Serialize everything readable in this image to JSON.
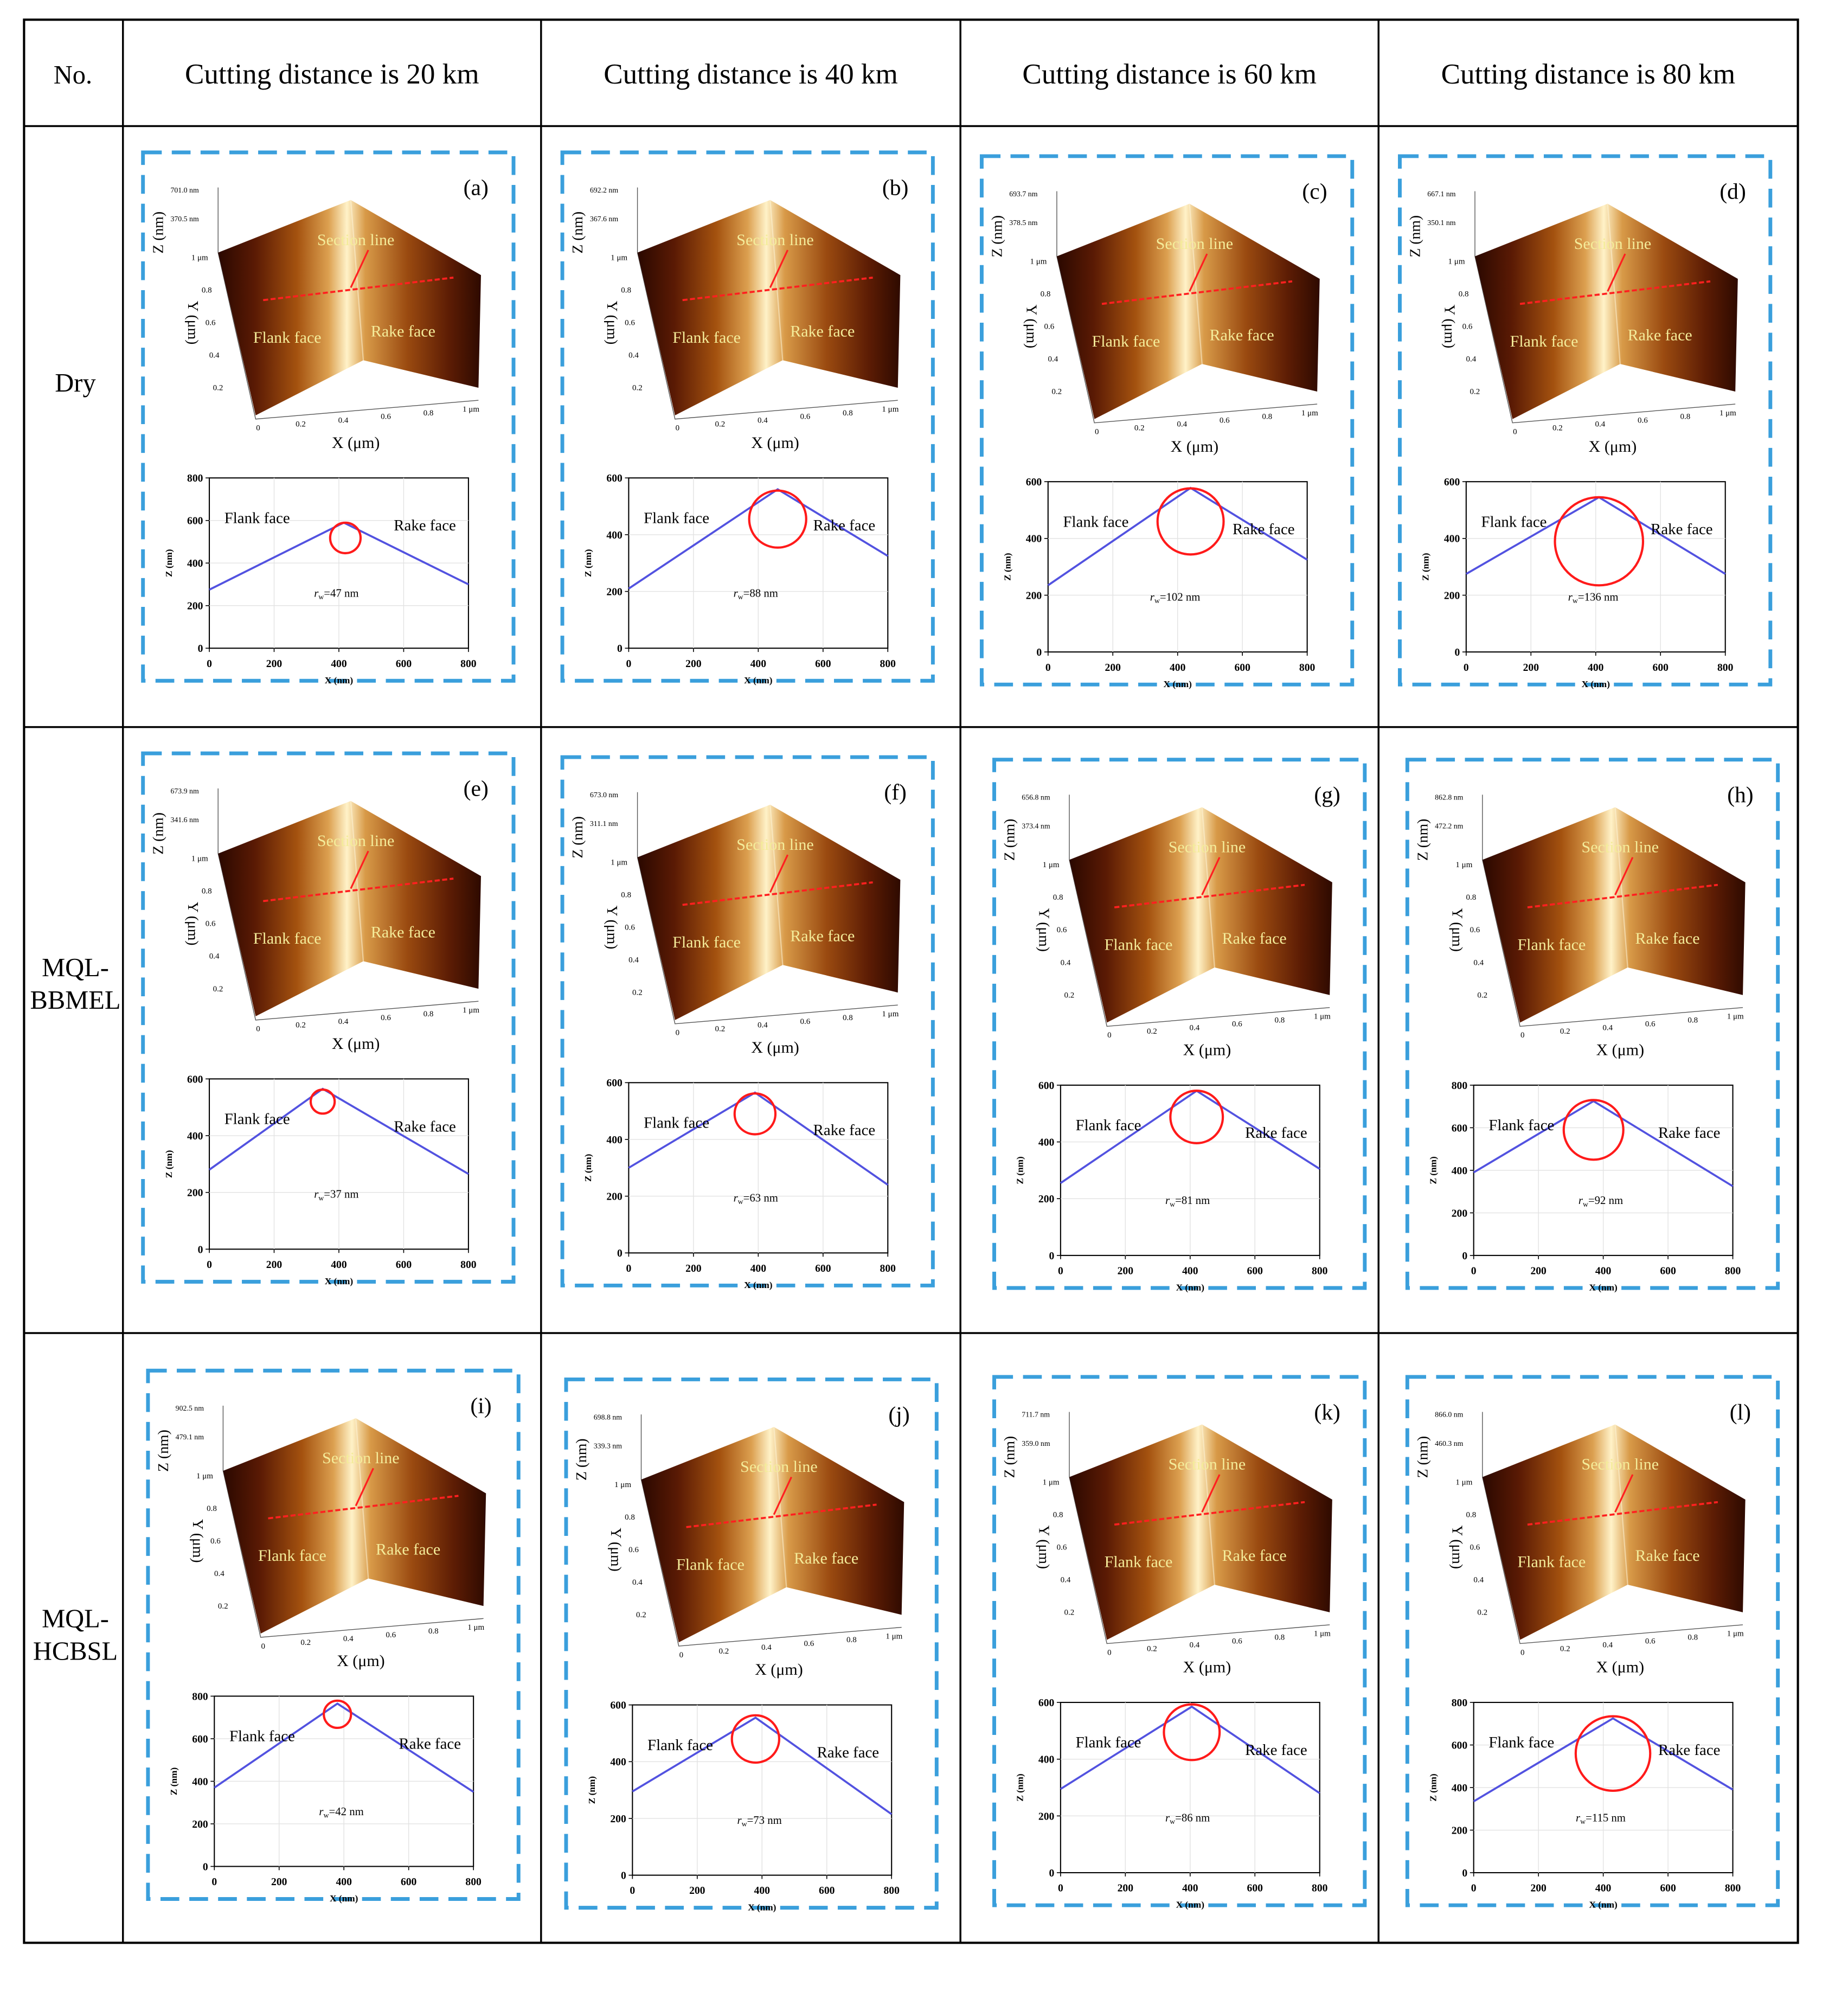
{
  "table": {
    "header_no": "No.",
    "columns": [
      "Cutting distance is 20 km",
      "Cutting distance is 40 km",
      "Cutting distance is 60 km",
      "Cutting distance is 80 km"
    ],
    "rows": [
      {
        "label_lines": [
          "Dry"
        ]
      },
      {
        "label_lines": [
          "MQL-",
          "BBMEL"
        ]
      },
      {
        "label_lines": [
          "MQL-",
          "HCBSL"
        ]
      }
    ]
  },
  "panel_text": {
    "section_line": "Section line",
    "flank_face": "Flank face",
    "rake_face": "Rake face",
    "x_axis_3d": "X (μm)",
    "y_axis_3d": "Y (μm)",
    "z_axis_3d": "Z (nm)",
    "x_axis_2d": "X (nm)",
    "z_axis_2d": "Z (nm)",
    "y_ticks_3d": [
      "1 μm",
      "0.8",
      "0.6",
      "0.4",
      "0.2"
    ],
    "x_ticks_3d": [
      "0",
      "0.2",
      "0.4",
      "0.6",
      "0.8",
      "1 μm"
    ],
    "x_ticks_2d": [
      "0",
      "200",
      "400",
      "600",
      "800"
    ]
  },
  "colors": {
    "dashed_border": "#3a9fdc",
    "profile_line": "#5252e0",
    "edge_circle": "#ff1a1a",
    "section_line": "#ff2020",
    "label_on_surface": "#f4ec9a"
  },
  "panels": [
    {
      "id": "(a)",
      "z_max": "701.0 nm",
      "z_mid": "370.5 nm",
      "rw": "47",
      "ylim": [
        0,
        800
      ],
      "profile": [
        [
          0,
          275
        ],
        [
          415,
          590
        ],
        [
          800,
          300
        ]
      ],
      "circle": {
        "cx": 420,
        "cy": 518,
        "r": 47
      }
    },
    {
      "id": "(b)",
      "z_max": "692.2 nm",
      "z_mid": "367.6 nm",
      "rw": "88",
      "ylim": [
        0,
        600
      ],
      "profile": [
        [
          0,
          210
        ],
        [
          460,
          560
        ],
        [
          800,
          325
        ]
      ],
      "circle": {
        "cx": 460,
        "cy": 455,
        "r": 88
      }
    },
    {
      "id": "(c)",
      "z_max": "693.7 nm",
      "z_mid": "378.5 nm",
      "rw": "102",
      "ylim": [
        0,
        600
      ],
      "profile": [
        [
          0,
          235
        ],
        [
          440,
          578
        ],
        [
          800,
          325
        ]
      ],
      "circle": {
        "cx": 440,
        "cy": 460,
        "r": 102
      }
    },
    {
      "id": "(d)",
      "z_max": "667.1 nm",
      "z_mid": "350.1 nm",
      "rw": "136",
      "ylim": [
        0,
        600
      ],
      "profile": [
        [
          0,
          275
        ],
        [
          410,
          545
        ],
        [
          800,
          275
        ]
      ],
      "circle": {
        "cx": 410,
        "cy": 390,
        "r": 136
      }
    },
    {
      "id": "(e)",
      "z_max": "673.9 nm",
      "z_mid": "341.6 nm",
      "rw": "37",
      "ylim": [
        0,
        600
      ],
      "profile": [
        [
          0,
          280
        ],
        [
          350,
          565
        ],
        [
          800,
          265
        ]
      ],
      "circle": {
        "cx": 350,
        "cy": 520,
        "r": 37
      }
    },
    {
      "id": "(f)",
      "z_max": "673.0 nm",
      "z_mid": "311.1 nm",
      "rw": "63",
      "ylim": [
        0,
        600
      ],
      "profile": [
        [
          0,
          300
        ],
        [
          390,
          565
        ],
        [
          800,
          240
        ]
      ],
      "circle": {
        "cx": 390,
        "cy": 490,
        "r": 63
      }
    },
    {
      "id": "(g)",
      "z_max": "656.8 nm",
      "z_mid": "373.4 nm",
      "rw": "81",
      "ylim": [
        0,
        600
      ],
      "profile": [
        [
          0,
          255
        ],
        [
          420,
          580
        ],
        [
          800,
          305
        ]
      ],
      "circle": {
        "cx": 420,
        "cy": 488,
        "r": 81
      }
    },
    {
      "id": "(h)",
      "z_max": "862.8 nm",
      "z_mid": "472.2 nm",
      "rw": "92",
      "ylim": [
        0,
        800
      ],
      "profile": [
        [
          0,
          390
        ],
        [
          370,
          725
        ],
        [
          800,
          325
        ]
      ],
      "circle": {
        "cx": 370,
        "cy": 590,
        "r": 92
      }
    },
    {
      "id": "(i)",
      "z_max": "902.5 nm",
      "z_mid": "479.1 nm",
      "rw": "42",
      "ylim": [
        0,
        800
      ],
      "profile": [
        [
          0,
          370
        ],
        [
          380,
          765
        ],
        [
          800,
          350
        ]
      ],
      "circle": {
        "cx": 380,
        "cy": 715,
        "r": 42
      }
    },
    {
      "id": "(j)",
      "z_max": "698.8 nm",
      "z_mid": "339.3 nm",
      "rw": "73",
      "ylim": [
        0,
        600
      ],
      "profile": [
        [
          0,
          295
        ],
        [
          380,
          555
        ],
        [
          800,
          215
        ]
      ],
      "circle": {
        "cx": 380,
        "cy": 480,
        "r": 73
      }
    },
    {
      "id": "(k)",
      "z_max": "711.7 nm",
      "z_mid": "359.0 nm",
      "rw": "86",
      "ylim": [
        0,
        600
      ],
      "profile": [
        [
          0,
          295
        ],
        [
          405,
          585
        ],
        [
          800,
          280
        ]
      ],
      "circle": {
        "cx": 405,
        "cy": 495,
        "r": 86
      }
    },
    {
      "id": "(l)",
      "z_max": "866.0 nm",
      "z_mid": "460.3 nm",
      "rw": "115",
      "ylim": [
        0,
        800
      ],
      "profile": [
        [
          0,
          335
        ],
        [
          430,
          725
        ],
        [
          800,
          390
        ]
      ],
      "circle": {
        "cx": 430,
        "cy": 560,
        "r": 115
      }
    }
  ]
}
